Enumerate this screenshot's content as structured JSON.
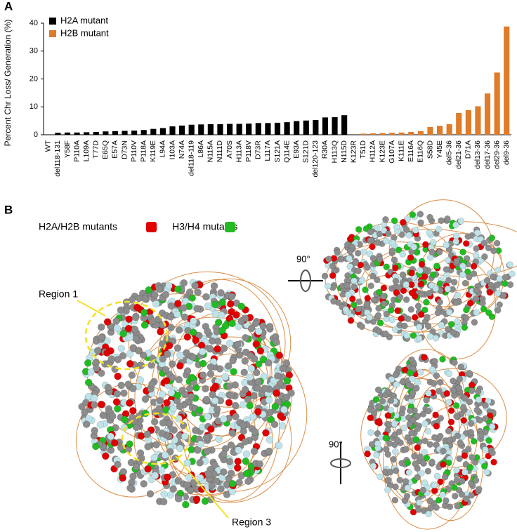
{
  "chart_data": {
    "type": "bar",
    "ylabel": "Percent Chr Loss/ Generation (%)",
    "categories": [
      "WT",
      "del118-131",
      "Y58F",
      "P110A",
      "L109A",
      "T77D",
      "E65Q",
      "E57A",
      "D73N",
      "P110V",
      "P118A",
      "K119E",
      "L94A",
      "I103A",
      "N74A",
      "del118-119",
      "L86A",
      "N115A",
      "N111D",
      "A70S",
      "H113A",
      "P118V",
      "D73R",
      "L117A",
      "S121A",
      "Q114E",
      "E93A",
      "S121D",
      "del120-123",
      "R30A",
      "H113Q",
      "N115D",
      "K123R",
      "T51D",
      "H112A",
      "K123E",
      "G107A",
      "K111E",
      "E116A",
      "E116Q",
      "S58D",
      "Y45E",
      "del5-36",
      "del21-36",
      "D71A",
      "del13-36",
      "del17-36",
      "del29-36",
      "del9-36"
    ],
    "series": [
      {
        "name": "H2A mutant",
        "color": "#000000",
        "values": [
          0,
          0.7,
          0.8,
          0.8,
          0.9,
          1.0,
          1.2,
          1.3,
          1.4,
          1.5,
          1.7,
          2.1,
          2.4,
          3.0,
          3.3,
          3.6,
          3.7,
          3.8,
          3.8,
          3.9,
          3.9,
          4.0,
          4.2,
          4.2,
          4.3,
          4.5,
          4.9,
          5.1,
          5.3,
          6.2,
          6.3,
          7.0,
          null,
          null,
          null,
          null,
          null,
          null,
          null,
          null,
          null,
          null,
          null,
          null,
          null,
          null,
          null,
          null,
          null
        ]
      },
      {
        "name": "H2B mutant",
        "color": "#e07b28",
        "values": [
          null,
          null,
          null,
          null,
          null,
          null,
          null,
          null,
          null,
          null,
          null,
          null,
          null,
          null,
          null,
          null,
          null,
          null,
          null,
          null,
          null,
          null,
          null,
          null,
          null,
          null,
          null,
          null,
          null,
          null,
          null,
          null,
          0,
          0.4,
          0.5,
          0.6,
          0.7,
          0.8,
          1.0,
          1.3,
          2.8,
          3.2,
          3.8,
          7.8,
          8.8,
          10.2,
          14.8,
          22.3,
          38.8
        ]
      }
    ],
    "ylim": [
      0,
      40
    ],
    "yticks": [
      0,
      10,
      20,
      30,
      40
    ],
    "legend": "top-left"
  },
  "panel_labels": [
    "A",
    "B"
  ],
  "structure_legend": [
    {
      "label": "H2A/H2B mutants",
      "color": "#e00000"
    },
    {
      "label": "H3/H4 mutants",
      "color": "#22bb22"
    }
  ],
  "annotations": [
    "Region 1",
    "Region 3"
  ],
  "rotation_labels": [
    "90°",
    "90°"
  ]
}
